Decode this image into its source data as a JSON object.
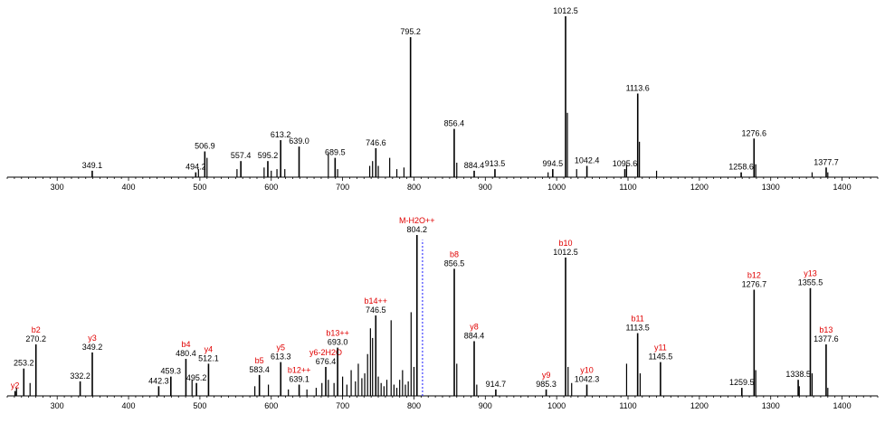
{
  "colors": {
    "peak": "#000000",
    "annotation": "#e00000",
    "precursor_line": "#1a1aff",
    "axis": "#000000"
  },
  "chart_data": [
    {
      "type": "bar",
      "panel": "top",
      "xlim": [
        230,
        1450
      ],
      "ylim": [
        0,
        1
      ],
      "x_ticks": [
        300,
        400,
        500,
        600,
        700,
        800,
        900,
        1000,
        1100,
        1200,
        1300,
        1400
      ],
      "labeled_peaks": [
        {
          "mz": 349.1,
          "label": "349.1",
          "y": 0.04
        },
        {
          "mz": 494.2,
          "label": "494.2",
          "y": 0.03
        },
        {
          "mz": 506.9,
          "label": "506.9",
          "y": 0.16
        },
        {
          "mz": 557.4,
          "label": "557.4",
          "y": 0.1
        },
        {
          "mz": 595.2,
          "label": "595.2",
          "y": 0.1
        },
        {
          "mz": 613.2,
          "label": "613.2",
          "y": 0.23
        },
        {
          "mz": 639.0,
          "label": "639.0",
          "y": 0.19
        },
        {
          "mz": 689.5,
          "label": "689.5",
          "y": 0.12
        },
        {
          "mz": 746.6,
          "label": "746.6",
          "y": 0.18
        },
        {
          "mz": 795.2,
          "label": "795.2",
          "y": 0.87
        },
        {
          "mz": 856.4,
          "label": "856.4",
          "y": 0.3
        },
        {
          "mz": 884.4,
          "label": "884.4",
          "y": 0.04
        },
        {
          "mz": 913.5,
          "label": "913.5",
          "y": 0.05
        },
        {
          "mz": 994.5,
          "label": "994.5",
          "y": 0.05
        },
        {
          "mz": 1012.5,
          "label": "1012.5",
          "y": 1.0
        },
        {
          "mz": 1042.4,
          "label": "1042.4",
          "y": 0.07
        },
        {
          "mz": 1095.6,
          "label": "1095.6",
          "y": 0.05
        },
        {
          "mz": 1113.6,
          "label": "1113.6",
          "y": 0.52
        },
        {
          "mz": 1258.6,
          "label": "1258.6",
          "y": 0.03
        },
        {
          "mz": 1276.6,
          "label": "1276.6",
          "y": 0.24
        },
        {
          "mz": 1377.7,
          "label": "1377.7",
          "y": 0.06
        }
      ],
      "minor_peaks": [
        {
          "mz": 498,
          "y": 0.05
        },
        {
          "mz": 510,
          "y": 0.12
        },
        {
          "mz": 552,
          "y": 0.05
        },
        {
          "mz": 590,
          "y": 0.06
        },
        {
          "mz": 600,
          "y": 0.04
        },
        {
          "mz": 608,
          "y": 0.05
        },
        {
          "mz": 619,
          "y": 0.05
        },
        {
          "mz": 680,
          "y": 0.15
        },
        {
          "mz": 693,
          "y": 0.05
        },
        {
          "mz": 738,
          "y": 0.07
        },
        {
          "mz": 742,
          "y": 0.1
        },
        {
          "mz": 750,
          "y": 0.07
        },
        {
          "mz": 766,
          "y": 0.12
        },
        {
          "mz": 776,
          "y": 0.05
        },
        {
          "mz": 786,
          "y": 0.06
        },
        {
          "mz": 860,
          "y": 0.09
        },
        {
          "mz": 988,
          "y": 0.03
        },
        {
          "mz": 1015,
          "y": 0.4
        },
        {
          "mz": 1028,
          "y": 0.05
        },
        {
          "mz": 1098,
          "y": 0.08
        },
        {
          "mz": 1116,
          "y": 0.22
        },
        {
          "mz": 1140,
          "y": 0.04
        },
        {
          "mz": 1279,
          "y": 0.08
        },
        {
          "mz": 1358,
          "y": 0.03
        },
        {
          "mz": 1380,
          "y": 0.03
        }
      ]
    },
    {
      "type": "bar",
      "panel": "bottom",
      "xlim": [
        230,
        1450
      ],
      "ylim": [
        0,
        1
      ],
      "x_ticks": [
        300,
        400,
        500,
        600,
        700,
        800,
        900,
        1000,
        1100,
        1200,
        1300,
        1400
      ],
      "labeled_peaks": [
        {
          "mz": 241.0,
          "label": "",
          "ion": "y2",
          "y": 0.03
        },
        {
          "mz": 253.2,
          "label": "253.2",
          "ion": "",
          "y": 0.17
        },
        {
          "mz": 270.2,
          "label": "270.2",
          "ion": "b2",
          "y": 0.32
        },
        {
          "mz": 332.2,
          "label": "332.2",
          "ion": "",
          "y": 0.09
        },
        {
          "mz": 349.2,
          "label": "349.2",
          "ion": "y3",
          "y": 0.27
        },
        {
          "mz": 442.3,
          "label": "442.3",
          "ion": "",
          "y": 0.06
        },
        {
          "mz": 459.3,
          "label": "459.3",
          "ion": "",
          "y": 0.12
        },
        {
          "mz": 480.4,
          "label": "480.4",
          "ion": "b4",
          "y": 0.23
        },
        {
          "mz": 495.2,
          "label": "495.2",
          "ion": "",
          "y": 0.08
        },
        {
          "mz": 512.1,
          "label": "512.1",
          "ion": "y4",
          "y": 0.2
        },
        {
          "mz": 583.4,
          "label": "583.4",
          "ion": "b5",
          "y": 0.13
        },
        {
          "mz": 613.3,
          "label": "613.3",
          "ion": "y5",
          "y": 0.21
        },
        {
          "mz": 639.1,
          "label": "639.1",
          "ion": "b12++",
          "y": 0.07
        },
        {
          "mz": 676.4,
          "label": "676.4",
          "ion": "y6-2H2O",
          "y": 0.18
        },
        {
          "mz": 693.0,
          "label": "693.0",
          "ion": "b13++",
          "y": 0.3
        },
        {
          "mz": 746.5,
          "label": "746.5",
          "ion": "b14++",
          "y": 0.5
        },
        {
          "mz": 804.2,
          "label": "804.2",
          "ion": "M-H2O++",
          "y": 1.0
        },
        {
          "mz": 856.5,
          "label": "856.5",
          "ion": "b8",
          "y": 0.79
        },
        {
          "mz": 884.4,
          "label": "884.4",
          "ion": "y8",
          "y": 0.34
        },
        {
          "mz": 914.7,
          "label": "914.7",
          "ion": "",
          "y": 0.04
        },
        {
          "mz": 985.3,
          "label": "985.3",
          "ion": "y9",
          "y": 0.04
        },
        {
          "mz": 1012.5,
          "label": "1012.5",
          "ion": "b10",
          "y": 0.86
        },
        {
          "mz": 1042.3,
          "label": "1042.3",
          "ion": "y10",
          "y": 0.07
        },
        {
          "mz": 1113.5,
          "label": "1113.5",
          "ion": "b11",
          "y": 0.39
        },
        {
          "mz": 1145.5,
          "label": "1145.5",
          "ion": "y11",
          "y": 0.21
        },
        {
          "mz": 1259.5,
          "label": "1259.5",
          "ion": "",
          "y": 0.05
        },
        {
          "mz": 1276.7,
          "label": "1276.7",
          "ion": "b12",
          "y": 0.66
        },
        {
          "mz": 1338.5,
          "label": "1338.5",
          "ion": "",
          "y": 0.1
        },
        {
          "mz": 1355.5,
          "label": "1355.5",
          "ion": "y13",
          "y": 0.67
        },
        {
          "mz": 1377.6,
          "label": "1377.6",
          "ion": "b13",
          "y": 0.32
        }
      ],
      "minor_peaks": [
        {
          "mz": 243,
          "y": 0.05
        },
        {
          "mz": 262,
          "y": 0.08
        },
        {
          "mz": 489,
          "y": 0.1
        },
        {
          "mz": 577,
          "y": 0.06
        },
        {
          "mz": 596,
          "y": 0.07
        },
        {
          "mz": 624,
          "y": 0.04
        },
        {
          "mz": 650,
          "y": 0.04
        },
        {
          "mz": 663,
          "y": 0.05
        },
        {
          "mz": 671,
          "y": 0.08
        },
        {
          "mz": 680,
          "y": 0.1
        },
        {
          "mz": 688,
          "y": 0.08
        },
        {
          "mz": 700,
          "y": 0.12
        },
        {
          "mz": 706,
          "y": 0.07
        },
        {
          "mz": 712,
          "y": 0.16
        },
        {
          "mz": 718,
          "y": 0.09
        },
        {
          "mz": 722,
          "y": 0.2
        },
        {
          "mz": 727,
          "y": 0.11
        },
        {
          "mz": 731,
          "y": 0.14
        },
        {
          "mz": 735,
          "y": 0.26
        },
        {
          "mz": 739,
          "y": 0.42
        },
        {
          "mz": 742,
          "y": 0.36
        },
        {
          "mz": 750,
          "y": 0.12
        },
        {
          "mz": 754,
          "y": 0.08
        },
        {
          "mz": 758,
          "y": 0.06
        },
        {
          "mz": 762,
          "y": 0.1
        },
        {
          "mz": 768,
          "y": 0.47
        },
        {
          "mz": 772,
          "y": 0.07
        },
        {
          "mz": 776,
          "y": 0.05
        },
        {
          "mz": 780,
          "y": 0.1
        },
        {
          "mz": 784,
          "y": 0.16
        },
        {
          "mz": 788,
          "y": 0.07
        },
        {
          "mz": 792,
          "y": 0.09
        },
        {
          "mz": 796,
          "y": 0.52
        },
        {
          "mz": 800,
          "y": 0.18
        },
        {
          "mz": 860,
          "y": 0.2
        },
        {
          "mz": 888,
          "y": 0.07
        },
        {
          "mz": 1016,
          "y": 0.18
        },
        {
          "mz": 1021,
          "y": 0.08
        },
        {
          "mz": 1098,
          "y": 0.2
        },
        {
          "mz": 1117,
          "y": 0.14
        },
        {
          "mz": 1279,
          "y": 0.16
        },
        {
          "mz": 1340,
          "y": 0.06
        },
        {
          "mz": 1358,
          "y": 0.14
        },
        {
          "mz": 1380,
          "y": 0.05
        }
      ]
    }
  ]
}
